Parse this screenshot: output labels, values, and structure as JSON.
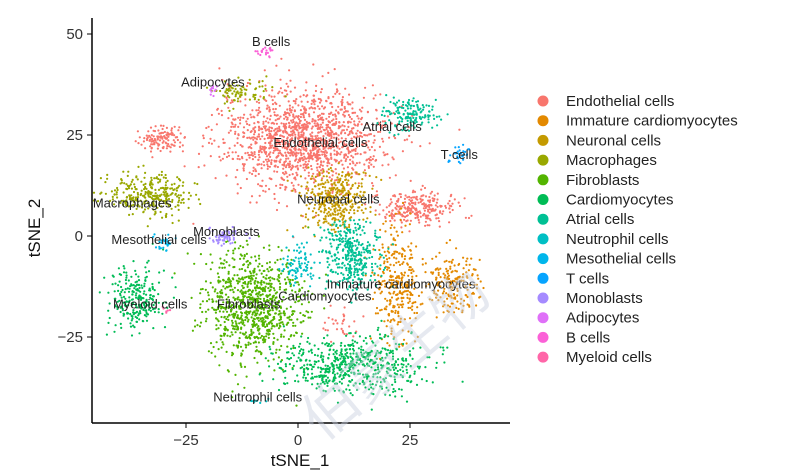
{
  "chart_data": {
    "type": "scatter",
    "xlabel": "tSNE_1",
    "ylabel": "tSNE_2",
    "xlim": [
      -46,
      47
    ],
    "ylim": [
      -46,
      53
    ],
    "xticks": [
      -25,
      0,
      25
    ],
    "yticks": [
      -25,
      0,
      25,
      50
    ],
    "grid": false,
    "legend_position": "right",
    "watermark": "伯豪生物",
    "series": [
      {
        "name": "Endothelial cells",
        "color": "#F8766D",
        "clusters": [
          {
            "x": 1,
            "y": 24,
            "sx": 9,
            "sy": 6,
            "n": 1400
          },
          {
            "x": -30,
            "y": 24,
            "sx": 3,
            "sy": 1.5,
            "n": 120
          },
          {
            "x": 27,
            "y": 7,
            "sx": 4,
            "sy": 2,
            "n": 250
          },
          {
            "x": 10,
            "y": -22,
            "sx": 2,
            "sy": 2,
            "n": 30
          }
        ]
      },
      {
        "name": "Immature cardiomyocytes",
        "color": "#E38900",
        "clusters": [
          {
            "x": 22,
            "y": -12,
            "sx": 2.5,
            "sy": 7,
            "n": 300
          },
          {
            "x": 34,
            "y": -12,
            "sx": 3,
            "sy": 4,
            "n": 180
          }
        ]
      },
      {
        "name": "Neuronal cells",
        "color": "#C49A00",
        "clusters": [
          {
            "x": 8,
            "y": 9,
            "sx": 3.5,
            "sy": 4,
            "n": 350
          }
        ]
      },
      {
        "name": "Macrophages",
        "color": "#99A800",
        "clusters": [
          {
            "x": -33,
            "y": 10,
            "sx": 4.5,
            "sy": 2.5,
            "n": 300
          },
          {
            "x": -13,
            "y": 36,
            "sx": 3,
            "sy": 1.5,
            "n": 80
          }
        ]
      },
      {
        "name": "Fibroblasts",
        "color": "#53B400",
        "clusters": [
          {
            "x": -10,
            "y": -17,
            "sx": 5.5,
            "sy": 6.5,
            "n": 900
          }
        ]
      },
      {
        "name": "Cardiomyocytes",
        "color": "#00BC56",
        "clusters": [
          {
            "x": 12,
            "y": -32,
            "sx": 8,
            "sy": 3.5,
            "n": 600
          },
          {
            "x": -36,
            "y": -15,
            "sx": 3,
            "sy": 4,
            "n": 250
          }
        ]
      },
      {
        "name": "Atrial cells",
        "color": "#00C094",
        "clusters": [
          {
            "x": 25,
            "y": 30,
            "sx": 3,
            "sy": 2,
            "n": 150
          },
          {
            "x": 12,
            "y": -5,
            "sx": 3,
            "sy": 4,
            "n": 350
          }
        ]
      },
      {
        "name": "Neutrophil cells",
        "color": "#00BFC4",
        "clusters": [
          {
            "x": 0,
            "y": -7,
            "sx": 2,
            "sy": 2.5,
            "n": 80
          },
          {
            "x": -9,
            "y": -41,
            "sx": 1,
            "sy": 0.4,
            "n": 10
          }
        ]
      },
      {
        "name": "Mesothelial cells",
        "color": "#00B6EB",
        "clusters": [
          {
            "x": -30,
            "y": -2,
            "sx": 1,
            "sy": 1,
            "n": 25
          }
        ]
      },
      {
        "name": "T cells",
        "color": "#06A4FF",
        "clusters": [
          {
            "x": 36,
            "y": 20,
            "sx": 1.2,
            "sy": 1.2,
            "n": 30
          }
        ]
      },
      {
        "name": "Monoblasts",
        "color": "#A58AFF",
        "clusters": [
          {
            "x": -16,
            "y": 0,
            "sx": 2,
            "sy": 1,
            "n": 60
          }
        ]
      },
      {
        "name": "Adipocytes",
        "color": "#DF70F8",
        "clusters": [
          {
            "x": -19,
            "y": 36,
            "sx": 0.6,
            "sy": 0.8,
            "n": 12
          }
        ]
      },
      {
        "name": "B cells",
        "color": "#FB61D7",
        "clusters": [
          {
            "x": -7,
            "y": 46,
            "sx": 1.2,
            "sy": 0.8,
            "n": 20
          }
        ]
      },
      {
        "name": "Myeloid cells",
        "color": "#FF66A8",
        "clusters": [
          {
            "x": -30,
            "y": -18,
            "sx": 0.6,
            "sy": 0.6,
            "n": 6
          }
        ]
      }
    ],
    "annotations": [
      {
        "text": "B cells",
        "x": -6,
        "y": 47
      },
      {
        "text": "Adipocytes",
        "x": -19,
        "y": 37
      },
      {
        "text": "Atrial cells",
        "x": 21,
        "y": 26
      },
      {
        "text": "Endothelial cells",
        "x": 5,
        "y": 22
      },
      {
        "text": "T cells",
        "x": 36,
        "y": 19
      },
      {
        "text": "Macrophages",
        "x": -37,
        "y": 7
      },
      {
        "text": "Neuronal cells",
        "x": 9,
        "y": 8
      },
      {
        "text": "Monoblasts",
        "x": -16,
        "y": 0
      },
      {
        "text": "Mesothelial cells",
        "x": -31,
        "y": -2
      },
      {
        "text": "Immature cardiomyocytes",
        "x": 23,
        "y": -13
      },
      {
        "text": "Cardiomyocytes",
        "x": 6,
        "y": -16
      },
      {
        "text": "Myeloid cells",
        "x": -33,
        "y": -18
      },
      {
        "text": "Fibroblasts",
        "x": -11,
        "y": -18
      },
      {
        "text": "Neutrophil cells",
        "x": -9,
        "y": -41
      }
    ]
  }
}
